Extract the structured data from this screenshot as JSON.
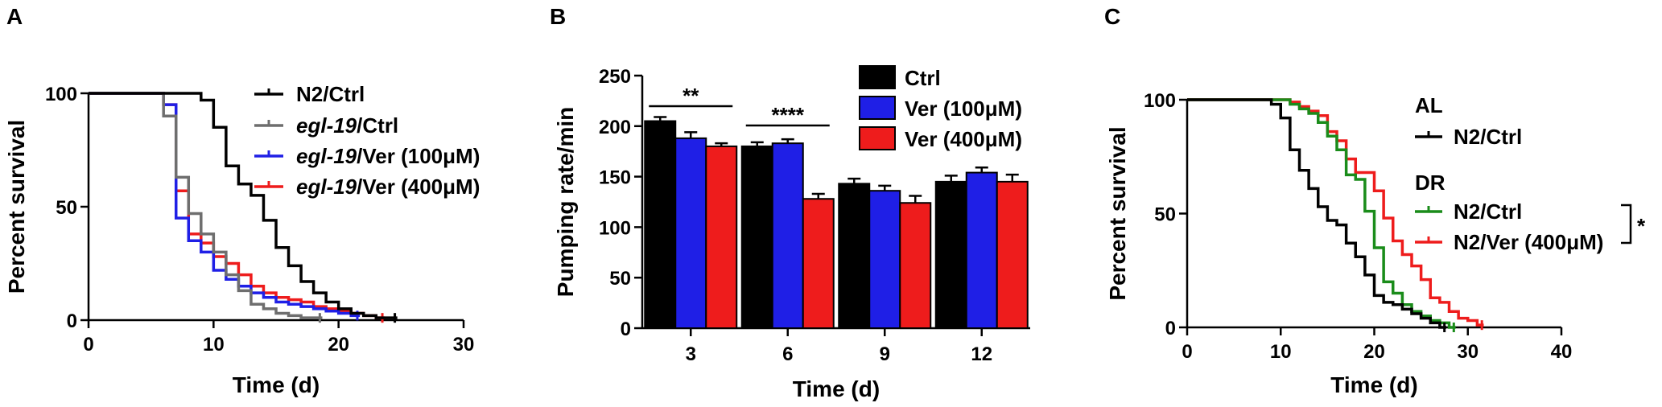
{
  "chart_data": [
    {
      "panel": "A",
      "type": "line",
      "xlabel": "Time (d)",
      "ylabel": "Percent survival",
      "xlim": [
        0,
        30
      ],
      "ylim": [
        0,
        100
      ],
      "xticks": [
        0,
        10,
        20,
        30
      ],
      "yticks": [
        0,
        50,
        100
      ],
      "series": [
        {
          "name": "N2/Ctrl",
          "name_italic": "",
          "name_rest": "N2/Ctrl",
          "color": "#000000",
          "x": [
            0,
            8,
            9,
            10,
            11,
            12,
            13,
            14,
            15,
            16,
            17,
            18,
            19,
            20,
            21,
            22,
            23,
            24
          ],
          "y": [
            100,
            100,
            97,
            85,
            68,
            60,
            55,
            44,
            32,
            24,
            17,
            12,
            8,
            5,
            3,
            2,
            1,
            1
          ]
        },
        {
          "name": "egl-19/Ctrl",
          "name_italic": "egl-19",
          "name_rest": "/Ctrl",
          "color": "#6e6e6e",
          "x": [
            0,
            5,
            6,
            7,
            8,
            9,
            10,
            11,
            12,
            13,
            14,
            15,
            16,
            17,
            18
          ],
          "y": [
            100,
            100,
            90,
            63,
            47,
            38,
            30,
            20,
            13,
            7,
            5,
            3,
            2,
            1,
            1
          ]
        },
        {
          "name": "egl-19/Ver (100μM)",
          "name_italic": "egl-19",
          "name_rest": "/Ver (100μM)",
          "color": "#1f1fe6",
          "x": [
            0,
            5,
            6,
            7,
            8,
            9,
            10,
            11,
            12,
            13,
            14,
            15,
            16,
            17,
            18,
            19,
            20,
            21
          ],
          "y": [
            100,
            100,
            95,
            45,
            35,
            30,
            22,
            18,
            15,
            12,
            10,
            8,
            7,
            6,
            5,
            4,
            3,
            2
          ]
        },
        {
          "name": "egl-19/Ver (400μM)",
          "name_italic": "egl-19",
          "name_rest": "/Ver (400μM)",
          "color": "#ee1c1c",
          "x": [
            0,
            5,
            6,
            7,
            8,
            9,
            10,
            11,
            12,
            13,
            14,
            15,
            16,
            17,
            18,
            19,
            20,
            21,
            22,
            23
          ],
          "y": [
            100,
            100,
            95,
            57,
            38,
            34,
            28,
            25,
            20,
            15,
            12,
            10,
            9,
            8,
            6,
            5,
            4,
            3,
            2,
            1
          ]
        }
      ]
    },
    {
      "panel": "B",
      "type": "bar",
      "xlabel": "Time (d)",
      "ylabel": "Pumping rate/min",
      "ylim": [
        0,
        250
      ],
      "yticks": [
        0,
        50,
        100,
        150,
        200,
        250
      ],
      "categories": [
        "3",
        "6",
        "9",
        "12"
      ],
      "series": [
        {
          "name": "Ctrl",
          "color": "#000000",
          "values": [
            205,
            180,
            143,
            145
          ],
          "errors": [
            4,
            4,
            5,
            6
          ]
        },
        {
          "name": "Ver (100μM)",
          "color": "#1f1fe6",
          "values": [
            188,
            183,
            136,
            154
          ],
          "errors": [
            6,
            4,
            5,
            5
          ]
        },
        {
          "name": "Ver (400μM)",
          "color": "#ee1c1c",
          "values": [
            180,
            128,
            124,
            145
          ],
          "errors": [
            3,
            5,
            7,
            7
          ]
        }
      ],
      "significance": [
        {
          "label": "**",
          "category": "3"
        },
        {
          "label": "****",
          "category": "6"
        }
      ]
    },
    {
      "panel": "C",
      "type": "line",
      "xlabel": "Time (d)",
      "ylabel": "Percent survival",
      "xlim": [
        0,
        40
      ],
      "ylim": [
        0,
        100
      ],
      "xticks": [
        0,
        10,
        20,
        30,
        40
      ],
      "yticks": [
        0,
        50,
        100
      ],
      "legend_groups": [
        {
          "title": "AL",
          "series": [
            "N2/Ctrl (AL)"
          ]
        },
        {
          "title": "DR",
          "series": [
            "N2/Ctrl (DR)",
            "N2/Ver (400μM)"
          ]
        }
      ],
      "series": [
        {
          "name": "N2/Ctrl (AL)",
          "label": "N2/Ctrl",
          "color": "#000000",
          "x": [
            0,
            8,
            9,
            10,
            11,
            12,
            13,
            14,
            15,
            16,
            17,
            18,
            19,
            20,
            21,
            22,
            23,
            24,
            25,
            26,
            27
          ],
          "y": [
            100,
            100,
            98,
            92,
            78,
            69,
            61,
            53,
            47,
            45,
            37,
            31,
            23,
            14,
            11,
            10,
            8,
            6,
            4,
            2,
            0
          ]
        },
        {
          "name": "N2/Ctrl (DR)",
          "label": "N2/Ctrl",
          "color": "#1a8c1a",
          "x": [
            0,
            10,
            11,
            12,
            13,
            14,
            15,
            16,
            17,
            18,
            19,
            20,
            21,
            22,
            23,
            24,
            25,
            26,
            27,
            28
          ],
          "y": [
            100,
            100,
            98,
            96,
            94,
            90,
            84,
            78,
            67,
            65,
            51,
            35,
            20,
            15,
            10,
            7,
            5,
            3,
            2,
            0
          ]
        },
        {
          "name": "N2/Ver (400μM)",
          "label": "N2/Ver (400μM)",
          "color": "#ee1c1c",
          "x": [
            0,
            10,
            11,
            12,
            13,
            14,
            15,
            16,
            17,
            18,
            19,
            20,
            21,
            22,
            23,
            24,
            25,
            26,
            27,
            28,
            29,
            30,
            31
          ],
          "y": [
            100,
            100,
            99,
            97,
            95,
            93,
            86,
            82,
            74,
            68,
            68,
            60,
            48,
            38,
            32,
            27,
            21,
            13,
            11,
            7,
            4,
            3,
            1
          ]
        }
      ],
      "significance": [
        {
          "label": "*"
        }
      ]
    }
  ]
}
